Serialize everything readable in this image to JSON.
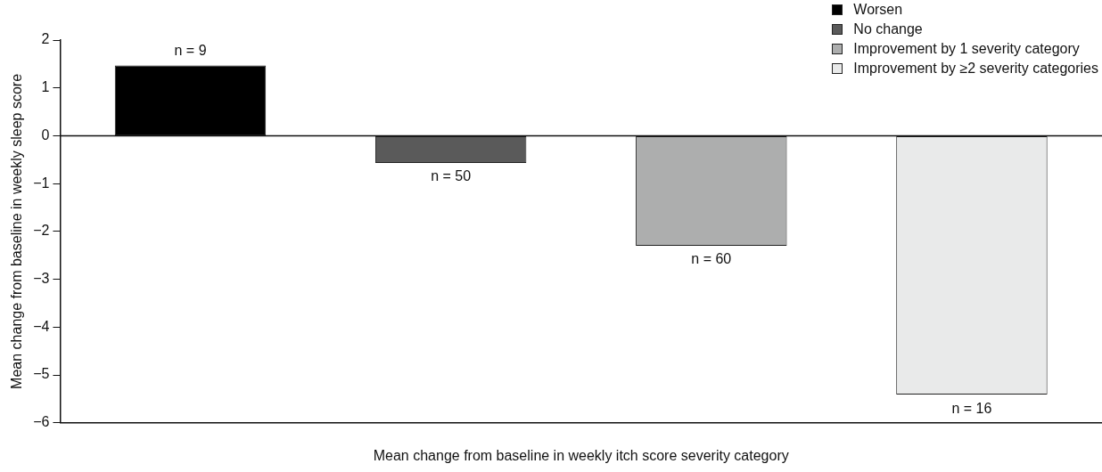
{
  "chart_data": {
    "type": "bar",
    "xlabel": "Mean change from baseline in weekly itch score severity category",
    "ylabel": "Mean change from baseline in weekly sleep score",
    "categories": [
      null,
      null,
      null,
      null
    ],
    "series": [
      {
        "name": "Worsen",
        "color": "#000000",
        "values": [
          1.47,
          null,
          null,
          null
        ]
      },
      {
        "name": "No change",
        "color": "#5a5a5a",
        "values": [
          null,
          -0.57,
          null,
          null
        ]
      },
      {
        "name": "Improvement by 1 severity category",
        "color": "#adaeae",
        "values": [
          null,
          null,
          -2.3,
          null
        ]
      },
      {
        "name": "Improvement by ≥2 severity categories",
        "color": "#e9eaea",
        "values": [
          null,
          null,
          null,
          -5.41
        ]
      }
    ],
    "annotations": [
      "n = 9",
      "n = 50",
      "n = 60",
      "n = 16"
    ],
    "ref_lines": [
      {
        "axis": "y",
        "value": 0,
        "color": "#111111"
      }
    ],
    "ylim": [
      -6,
      2
    ],
    "yticks": [
      {
        "value": -6,
        "label": "−6"
      },
      {
        "value": -5,
        "label": "−5"
      },
      {
        "value": -4,
        "label": "−4"
      },
      {
        "value": -3,
        "label": "−3"
      },
      {
        "value": -2,
        "label": "−2"
      },
      {
        "value": -1,
        "label": "−1"
      },
      0,
      1,
      2
    ],
    "tick_labels": "y",
    "legend": "top right",
    "grid": false
  }
}
